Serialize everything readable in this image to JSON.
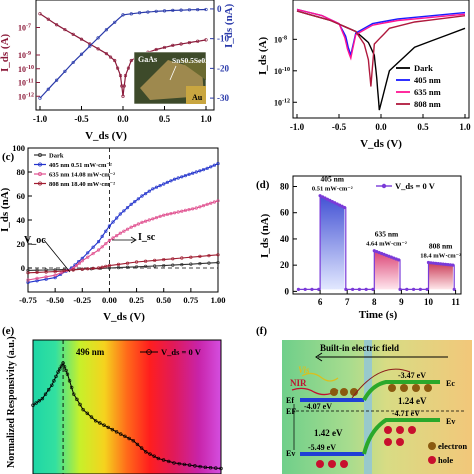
{
  "chart_data": [
    {
      "panel": "a",
      "type": "line",
      "ylabel_left": "I_ds (A)",
      "ylabel_right": "I_ds (nA)",
      "xlabel": "V_ds (V)",
      "xlim": [
        -1.0,
        1.0
      ],
      "x_ticks": [
        "-1.0",
        "-0.5",
        "0.0",
        "0.5",
        "1.0"
      ],
      "y_right_ticks": [
        "0",
        "-10",
        "-20",
        "-30"
      ],
      "y_left_ticks": [
        "10^-7",
        "10^-9",
        "10^-10",
        "10^-11",
        "10^-12"
      ],
      "inset_labels": {
        "substrate": "GaAs",
        "flake": "SnS0.5Se0.5",
        "electrode": "Au"
      },
      "series": [
        {
          "name": "log",
          "x": [
            -1.0,
            -0.8,
            -0.6,
            -0.4,
            -0.2,
            -0.1,
            -0.03,
            0.0,
            0.03,
            0.1,
            0.2,
            0.4,
            0.6,
            0.8,
            1.0
          ],
          "y": [
            6.0,
            6.8,
            7.5,
            8.2,
            8.9,
            9.4,
            10.5,
            12.0,
            10.5,
            9.4,
            9.0,
            8.6,
            8.3,
            8.1,
            7.9
          ]
        },
        {
          "name": "linear",
          "x": [
            -1.0,
            -0.8,
            -0.6,
            -0.4,
            -0.2,
            0.0,
            0.2,
            0.4,
            0.6,
            0.8,
            1.0
          ],
          "y": [
            -30,
            -24,
            -18,
            -12.5,
            -7,
            -2,
            -1.3,
            -0.8,
            -0.5,
            -0.3,
            -0.2
          ]
        }
      ]
    },
    {
      "panel": "b",
      "type": "line",
      "ylabel": "I_ds (A)",
      "xlabel": "V_ds (V)",
      "xlim": [
        -1.0,
        1.0
      ],
      "x_ticks": [
        "-1.0",
        "-0.5",
        "0.0",
        "0.5",
        "1.0"
      ],
      "y_ticks": [
        "10^-8",
        "10^-10",
        "10^-12"
      ],
      "legend": "center-right",
      "series": [
        {
          "name": "Dark",
          "color": "#000000",
          "x": [
            -1.0,
            -0.6,
            -0.3,
            -0.15,
            -0.08,
            -0.05,
            -0.02,
            0.1,
            0.4,
            1.0
          ],
          "y": [
            6.2,
            6.8,
            7.5,
            8.2,
            9.0,
            10.5,
            12.5,
            10.0,
            8.5,
            7.3
          ]
        },
        {
          "name": "405 nm",
          "color": "#1a1aff",
          "x": [
            -1.0,
            -0.7,
            -0.5,
            -0.42,
            -0.39,
            -0.36,
            -0.3,
            -0.1,
            0.2,
            1.0
          ],
          "y": [
            6.1,
            6.5,
            7.0,
            7.8,
            8.5,
            9.0,
            7.6,
            7.0,
            6.7,
            6.3
          ]
        },
        {
          "name": "635 nm",
          "color": "#ff1493",
          "x": [
            -1.0,
            -0.7,
            -0.5,
            -0.43,
            -0.4,
            -0.36,
            -0.3,
            -0.1,
            0.2,
            1.0
          ],
          "y": [
            6.1,
            6.5,
            7.0,
            7.9,
            8.6,
            9.2,
            7.7,
            7.1,
            6.8,
            6.4
          ]
        },
        {
          "name": "808 nm",
          "color": "#b0193d",
          "x": [
            -1.0,
            -0.6,
            -0.3,
            -0.2,
            -0.15,
            -0.12,
            -0.08,
            0.1,
            0.4,
            1.0
          ],
          "y": [
            6.2,
            6.8,
            7.5,
            8.3,
            9.3,
            11.0,
            8.3,
            7.3,
            6.9,
            6.5
          ]
        }
      ]
    },
    {
      "panel": "c",
      "type": "line",
      "ylabel": "I_ds (nA)",
      "xlabel": "V_ds (V)",
      "xlim": [
        -0.75,
        1.0
      ],
      "ylim": [
        -20,
        100
      ],
      "x_ticks": [
        "-0.75",
        "-0.50",
        "-0.25",
        "0.00",
        "0.25",
        "0.50",
        "0.75",
        "1.00"
      ],
      "y_ticks": [
        "0",
        "20",
        "40",
        "60",
        "80",
        "100"
      ],
      "annotations": [
        "V_oc",
        "I_sc"
      ],
      "legend": "top-left",
      "series": [
        {
          "name": "Dark",
          "color": "#333333",
          "x": [
            -0.75,
            -0.5,
            -0.25,
            0.0,
            0.25,
            0.5,
            0.75,
            1.0
          ],
          "y": [
            -2,
            -1.5,
            -1,
            0,
            1,
            2,
            3.2,
            4.5
          ]
        },
        {
          "name": "405 nm 0.51 mW·cm⁻²",
          "color": "#2233cc",
          "x": [
            -0.75,
            -0.5,
            -0.35,
            -0.25,
            -0.1,
            0.0,
            0.1,
            0.2,
            0.3,
            0.4,
            0.5,
            0.6,
            0.7,
            0.8,
            0.9,
            1.0
          ],
          "y": [
            -12,
            -8,
            0,
            8,
            22,
            35,
            45,
            53,
            60,
            66,
            70,
            74,
            77,
            80,
            83,
            87
          ]
        },
        {
          "name": "635 nm 14.08 mW·cm⁻²",
          "color": "#e0508f",
          "x": [
            -0.75,
            -0.5,
            -0.33,
            -0.25,
            -0.1,
            0.0,
            0.1,
            0.2,
            0.3,
            0.4,
            0.5,
            0.6,
            0.7,
            0.8,
            0.9,
            1.0
          ],
          "y": [
            -10,
            -6,
            0,
            6,
            15,
            23,
            29,
            34,
            38,
            41,
            44,
            46,
            48,
            50,
            53,
            56
          ]
        },
        {
          "name": "808 nm 18.40 mW·cm⁻²",
          "color": "#a01c30",
          "x": [
            -0.75,
            -0.5,
            -0.25,
            -0.1,
            0.0,
            0.25,
            0.5,
            0.75,
            1.0
          ],
          "y": [
            -4,
            -3,
            -1,
            0,
            2,
            5,
            7,
            9,
            11
          ]
        }
      ]
    },
    {
      "panel": "d",
      "type": "line",
      "ylabel": "I_ds (nA)",
      "xlabel": "Time (s)",
      "xlim": [
        5,
        11
      ],
      "ylim": [
        0,
        85
      ],
      "x_ticks": [
        "6",
        "7",
        "8",
        "9",
        "10",
        "11"
      ],
      "y_ticks": [
        "0",
        "20",
        "40",
        "60",
        "80"
      ],
      "legend_label": "V_ds = 0 V",
      "pulses": [
        {
          "start": 6.0,
          "end": 6.9,
          "from": 73,
          "to": 64,
          "label": "405 nm",
          "power": "0.51 mW·cm⁻²",
          "color": "#2233cc"
        },
        {
          "start": 8.0,
          "end": 8.9,
          "from": 31,
          "to": 24,
          "label": "635 nm",
          "power": "4.64 mW·cm⁻²",
          "color": "#d4215c"
        },
        {
          "start": 10.0,
          "end": 10.9,
          "from": 22,
          "to": 20,
          "label": "808 nm",
          "power": "18.4 mW·cm⁻²",
          "color": "#c01838"
        }
      ],
      "baseline": 1.5
    },
    {
      "panel": "e",
      "type": "line",
      "ylabel": "Normalized Responsivity (a.u.)",
      "legend_label": "V_ds = 0 V",
      "annotations": [
        "496 nm"
      ],
      "peak_x": 496,
      "xlim": [
        400,
        1000
      ],
      "series": [
        {
          "name": "V_ds = 0 V",
          "x": [
            400,
            430,
            460,
            480,
            496,
            510,
            530,
            560,
            600,
            640,
            680,
            720,
            760,
            800,
            850,
            900,
            950,
            1000
          ],
          "y": [
            0.62,
            0.68,
            0.8,
            0.92,
            1.0,
            0.9,
            0.72,
            0.58,
            0.48,
            0.42,
            0.36,
            0.3,
            0.2,
            0.14,
            0.1,
            0.08,
            0.06,
            0.05
          ]
        }
      ]
    },
    {
      "panel": "f",
      "type": "diagram",
      "labels": {
        "field": "Built-in electric field",
        "vis": "Vis",
        "nir": "NIR",
        "ef_left": "Ef",
        "ef_mid": "EF",
        "ec": "Ec",
        "ev": "Ev",
        "ev_left": "Ev",
        "e_top": "-3.47 eV",
        "e_ef": "-4.07 eV",
        "e_mid": "-4.71 eV",
        "gap_left": "1.42 eV",
        "gap_right": "1.24 eV",
        "e_bottom": "-5.49 eV",
        "electron": "electron",
        "hole": "hole"
      }
    }
  ],
  "panel_labels": [
    "(c)",
    "(d)",
    "(e)",
    "(f)"
  ]
}
